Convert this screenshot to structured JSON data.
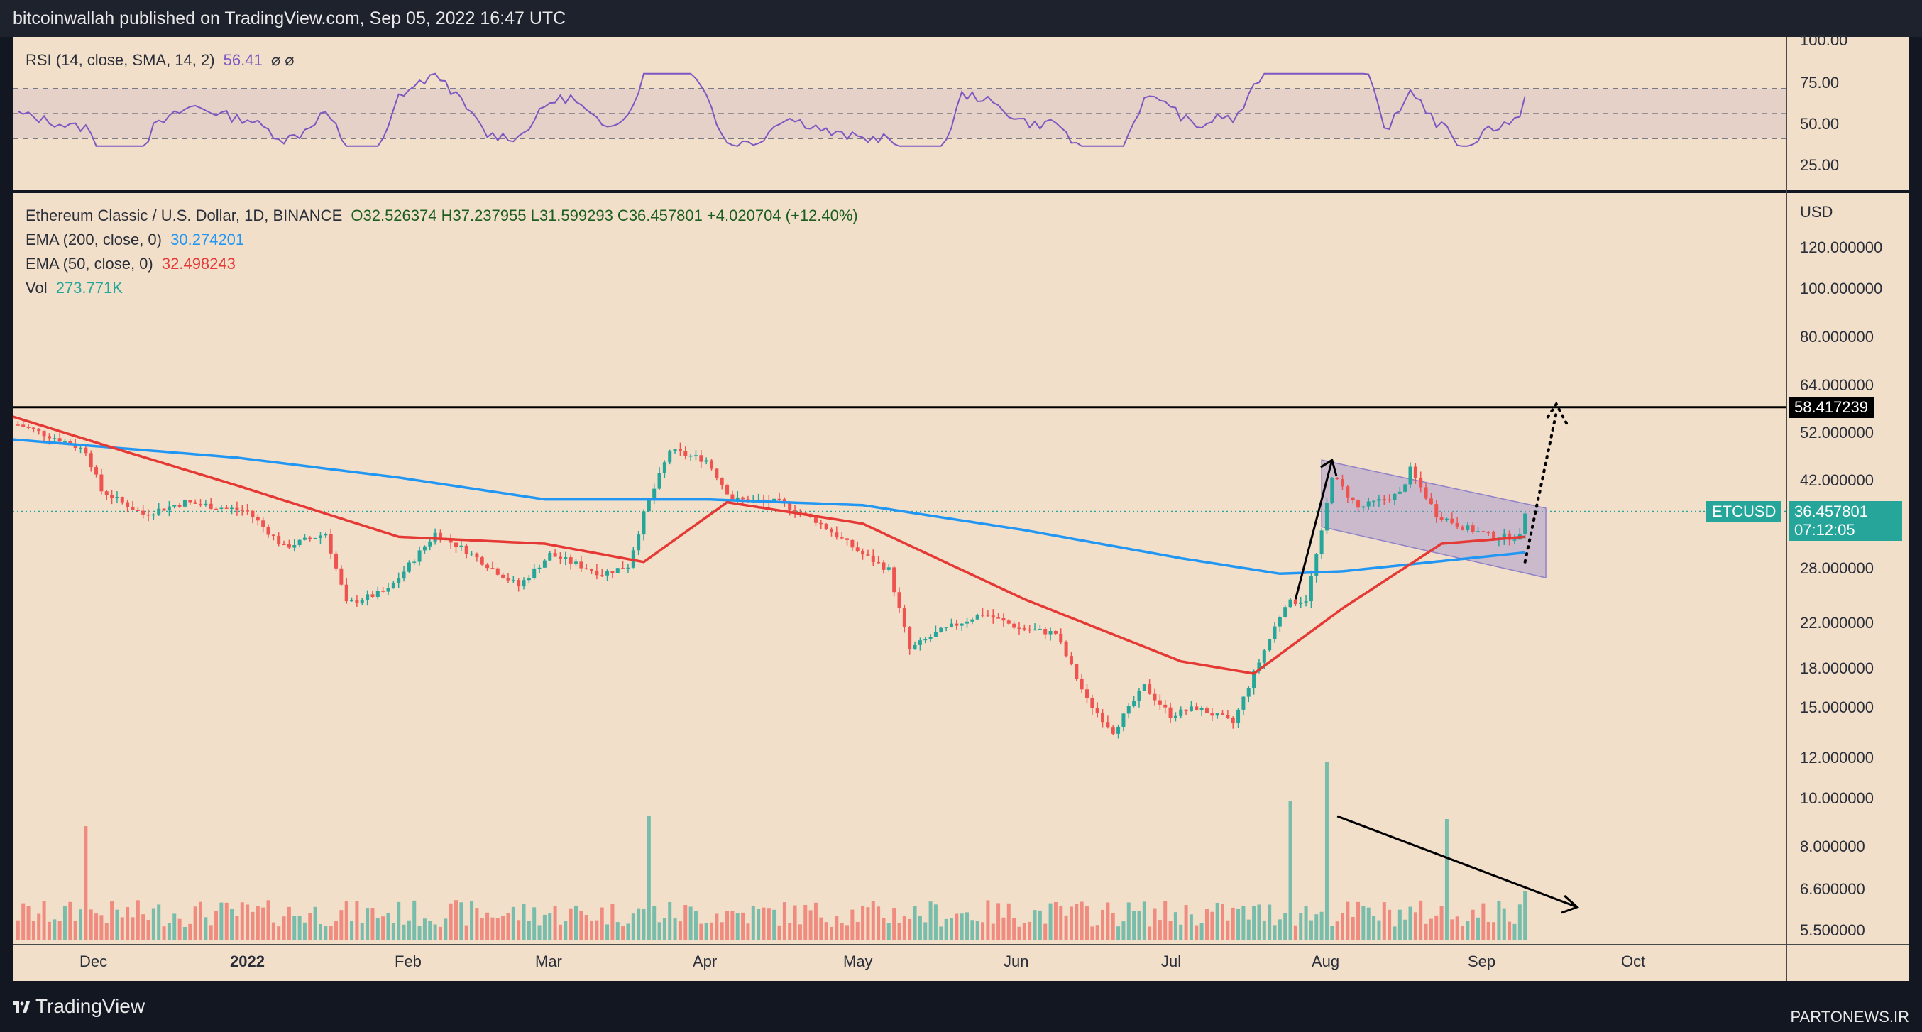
{
  "header": {
    "publisher_line": "bitcoinwallah published on TradingView.com, Sep 05, 2022 16:47 UTC"
  },
  "rsi": {
    "label": "RSI (14, close, SMA, 14, 2)",
    "value": "56.41",
    "extra": "⌀ ⌀",
    "ticks": [
      "100.00",
      "75.00",
      "50.00",
      "25.00"
    ],
    "line_color": "#7e57c2"
  },
  "legend": {
    "symbol": "Ethereum Classic / U.S. Dollar, 1D, BINANCE",
    "ohlc": "O32.526374   H37.237955   L31.599293   C36.457801   +4.020704 (+12.40%)",
    "ema200_label": "EMA (200, close, 0)",
    "ema200_value": "30.274201",
    "ema50_label": "EMA (50, close, 0)",
    "ema50_value": "32.498243",
    "vol_label": "Vol",
    "vol_value": "273.771K"
  },
  "price_axis": {
    "currency": "USD",
    "ticks": [
      "120.000000",
      "100.000000",
      "80.000000",
      "64.000000",
      "52.000000",
      "42.000000",
      "28.000000",
      "22.000000",
      "18.000000",
      "15.000000",
      "12.000000",
      "10.000000",
      "8.000000",
      "6.600000",
      "5.500000"
    ]
  },
  "resistance_badge": "58.417239",
  "symbol_badge": "ETCUSD",
  "price_badge": "36.457801",
  "countdown_badge": "07:12:05",
  "time_axis": {
    "labels": [
      "Dec",
      "2022",
      "Feb",
      "Mar",
      "Apr",
      "May",
      "Jun",
      "Jul",
      "Aug",
      "Sep",
      "Oct"
    ]
  },
  "footer": {
    "brand": "TradingView",
    "watermark": "PARTONEWS.IR"
  },
  "colors": {
    "bull": "#26a69a",
    "bear": "#ef5350",
    "ema200": "#2196f3",
    "ema50": "#e53935",
    "rsi": "#7e57c2",
    "resistance": "#000000",
    "channel": "#9c8fd1"
  },
  "chart_data": {
    "type": "candlestick",
    "symbol": "ETCUSD",
    "x_range": [
      "2021-11-19",
      "2022-10-25"
    ],
    "y_scale": "log",
    "ylim": [
      5.0,
      140.0
    ],
    "resistance_level": 58.417239,
    "last_close": 36.457801,
    "price_path": [
      [
        "2021-11-20",
        54.0
      ],
      [
        "2021-11-28",
        50.5
      ],
      [
        "2021-12-03",
        48.0
      ],
      [
        "2021-12-06",
        40.0
      ],
      [
        "2021-12-14",
        36.0
      ],
      [
        "2021-12-22",
        38.0
      ],
      [
        "2022-01-03",
        36.5
      ],
      [
        "2022-01-10",
        31.0
      ],
      [
        "2022-01-18",
        33.0
      ],
      [
        "2022-01-22",
        24.0
      ],
      [
        "2022-01-30",
        25.5
      ],
      [
        "2022-02-08",
        33.0
      ],
      [
        "2022-02-14",
        30.5
      ],
      [
        "2022-02-24",
        26.0
      ],
      [
        "2022-03-02",
        30.0
      ],
      [
        "2022-03-12",
        27.5
      ],
      [
        "2022-03-17",
        28.5
      ],
      [
        "2022-03-20",
        36.0
      ],
      [
        "2022-03-25",
        48.0
      ],
      [
        "2022-04-01",
        46.0
      ],
      [
        "2022-04-06",
        38.5
      ],
      [
        "2022-04-15",
        38.0
      ],
      [
        "2022-04-22",
        35.0
      ],
      [
        "2022-05-01",
        30.0
      ],
      [
        "2022-05-06",
        28.0
      ],
      [
        "2022-05-10",
        19.5
      ],
      [
        "2022-05-15",
        21.0
      ],
      [
        "2022-05-24",
        23.0
      ],
      [
        "2022-05-31",
        21.5
      ],
      [
        "2022-06-07",
        21.0
      ],
      [
        "2022-06-13",
        15.5
      ],
      [
        "2022-06-18",
        13.5
      ],
      [
        "2022-06-24",
        16.5
      ],
      [
        "2022-06-29",
        14.5
      ],
      [
        "2022-07-04",
        15.0
      ],
      [
        "2022-07-11",
        14.0
      ],
      [
        "2022-07-15",
        17.5
      ],
      [
        "2022-07-21",
        24.0
      ],
      [
        "2022-07-25",
        24.5
      ],
      [
        "2022-07-28",
        33.0
      ],
      [
        "2022-07-30",
        43.0
      ],
      [
        "2022-08-04",
        37.0
      ],
      [
        "2022-08-12",
        39.5
      ],
      [
        "2022-08-14",
        44.0
      ],
      [
        "2022-08-19",
        36.0
      ],
      [
        "2022-08-24",
        34.0
      ],
      [
        "2022-08-30",
        32.5
      ],
      [
        "2022-09-04",
        32.5
      ],
      [
        "2022-09-05",
        36.46
      ]
    ],
    "ema200_path": [
      [
        "2021-11-19",
        50.5
      ],
      [
        "2022-01-01",
        46.5
      ],
      [
        "2022-02-01",
        42.5
      ],
      [
        "2022-03-01",
        38.5
      ],
      [
        "2022-04-01",
        38.5
      ],
      [
        "2022-05-01",
        37.5
      ],
      [
        "2022-06-01",
        33.5
      ],
      [
        "2022-07-01",
        29.5
      ],
      [
        "2022-07-20",
        27.5
      ],
      [
        "2022-08-01",
        27.8
      ],
      [
        "2022-09-05",
        30.27
      ]
    ],
    "ema50_path": [
      [
        "2021-11-19",
        56.0
      ],
      [
        "2021-12-10",
        48.0
      ],
      [
        "2022-01-01",
        41.0
      ],
      [
        "2022-02-01",
        32.5
      ],
      [
        "2022-03-01",
        31.5
      ],
      [
        "2022-03-20",
        29.0
      ],
      [
        "2022-04-05",
        38.0
      ],
      [
        "2022-05-01",
        34.5
      ],
      [
        "2022-06-01",
        24.5
      ],
      [
        "2022-07-01",
        18.5
      ],
      [
        "2022-07-15",
        17.5
      ],
      [
        "2022-08-01",
        23.5
      ],
      [
        "2022-08-20",
        31.5
      ],
      [
        "2022-09-05",
        32.5
      ]
    ],
    "volume_spikes_k": [
      [
        "2021-12-03",
        640
      ],
      [
        "2022-03-21",
        700
      ],
      [
        "2022-07-22",
        780
      ],
      [
        "2022-07-29",
        1000
      ],
      [
        "2022-08-21",
        680
      ],
      [
        "2022-09-05",
        273.771
      ]
    ],
    "annotations": [
      "descending channel Jul 29 – Sep 9",
      "up arrow Jul 23 → Jul 30",
      "dotted projected breakout to 58.42",
      "falling volume trend arrow"
    ]
  }
}
